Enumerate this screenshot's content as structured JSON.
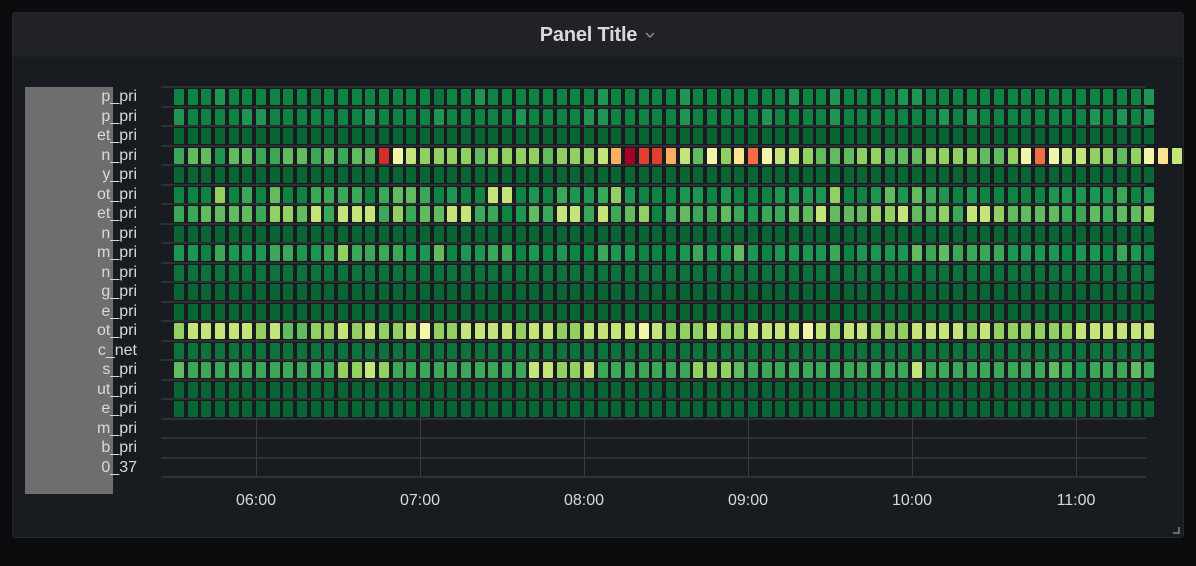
{
  "panel": {
    "title": "Panel Title",
    "menu_icon": "chevron-down-icon",
    "resize_icon": "resize-handle-icon"
  },
  "colors": {
    "page_bg": "#0b0c0e",
    "panel_bg": "#181b1f",
    "header_bg": "#212226",
    "text": "#d8d9da",
    "grid": "#2f3034",
    "scale": {
      "0": "#08592f",
      "1": "#0a6535",
      "2": "#0b733b",
      "3": "#0e8443",
      "4": "#1c9650",
      "5": "#3aa857",
      "6": "#62bb5e",
      "7": "#92d062",
      "8": "#c3e57a",
      "9": "#f3f6a6",
      "a": "#fee48e",
      "b": "#fdae61",
      "c": "#f46d43",
      "d": "#e0402e",
      "e": "#d22d26",
      "f": "#a50026"
    }
  },
  "chart_data": {
    "type": "heatmap",
    "title": "Panel Title",
    "xlabel": "",
    "ylabel": "",
    "x_ticks": [
      "06:00",
      "07:00",
      "08:00",
      "09:00",
      "10:00",
      "11:00"
    ],
    "x_bucket": "5m",
    "x_range": [
      "05:30",
      "11:25"
    ],
    "y_labels": [
      "p_pri",
      "p_pri",
      "et_pri",
      "n_pri",
      "y_pri",
      "ot_pri",
      "et_pri",
      "n_pri",
      "m_pri",
      "n_pri",
      "g_pri",
      "e_pri",
      "ot_pri",
      "c_net",
      "s_pri",
      "ut_pri",
      "e_pri",
      "m_pri",
      "b_pri",
      "0_37"
    ],
    "rows": [
      "333433333323333333323343333333343333343333333433433334433333333333333334",
      "433334433333334333343333343333443333343333343333433333334343333333343434",
      "111111111111111111111111111111111111111111111111111111111111111111111111",
      "566466556656566e9877776777767778bfddb8697ac98876667766677776679c98877679a8",
      "111111111111111111111111111111111111111111111111111111111111111111111111",
      "333735363355553566534338834354457433344343334444733464654343333344444534",
      "556666577685888575668855346588585673565565455668666778667588766665565667",
      "111111111111111111111111111111111111111111111111111111111111111111111111",
      "443544455445755554463445534343354433345446434444534444656555544443443543",
      "222222222222222222222222222222222222222222222222222222222222222222222222",
      "111111111111111111111111111111111111111111111111111111111111111111111111",
      "111111111111111111111111111111111111111111111111111111111111111111111111",
      "788888786677878778977888878877888898777877888898788777888878777777888888",
      "222222222222222222222222222222222222222222222222222222222222222222222222",
      "655555555555778755555555558877855555557776555555555555855555555565455565",
      "111111111111111111111111111111111111111111111111111111111111111111111111",
      "111111111111111111111111111111111111111111111111111111111111111111111111",
      "",
      "",
      ""
    ],
    "legend": "none",
    "color_scheme": "RdYlGn (reversed: green low, red high)"
  },
  "xaxis": {
    "ticks": [
      "06:00",
      "07:00",
      "08:00",
      "09:00",
      "10:00",
      "11:00"
    ]
  }
}
